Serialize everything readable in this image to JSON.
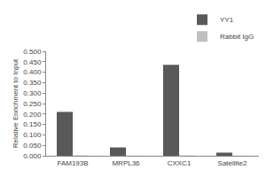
{
  "chart_data": {
    "type": "bar",
    "categories": [
      "FAM193B",
      "MRPL36",
      "CXXC1",
      "Satellite2"
    ],
    "series": [
      {
        "name": "YY1",
        "color": "#595959",
        "values": [
          0.21,
          0.04,
          0.435,
          0.015
        ]
      },
      {
        "name": "Rabbit IgG",
        "color": "#bfbfbf",
        "values": [
          0.002,
          0.001,
          0.002,
          0.001
        ]
      }
    ],
    "y_label": "Relative Enrichment to Input",
    "ylim": [
      0,
      0.5
    ],
    "yticks": [
      {
        "value": 0,
        "label": "0.000"
      },
      {
        "value": 0.05,
        "label": "0.050"
      },
      {
        "value": 0.1,
        "label": "0.100"
      },
      {
        "value": 0.15,
        "label": "0.150"
      },
      {
        "value": 0.2,
        "label": "0.200"
      },
      {
        "value": 0.25,
        "label": "0.250"
      },
      {
        "value": 0.3,
        "label": "0.300"
      },
      {
        "value": 0.35,
        "label": "0.350"
      },
      {
        "value": 0.4,
        "label": "0.400"
      },
      {
        "value": 0.45,
        "label": "0.450"
      },
      {
        "value": 0.5,
        "label": "0.500"
      }
    ],
    "grid": false,
    "legend": "upper right"
  }
}
